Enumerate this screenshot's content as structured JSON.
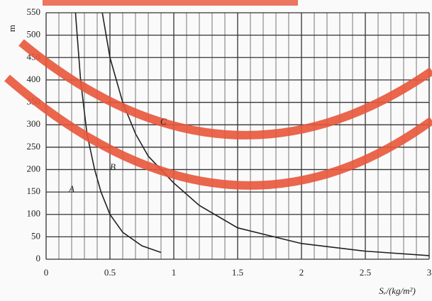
{
  "chart_data": {
    "type": "line",
    "y_label": "m",
    "x_label": "Sᵥ/(kg/m²)",
    "series": [
      {
        "name": "A",
        "color": "#222222",
        "x": [
          0.23,
          0.27,
          0.32,
          0.38,
          0.43,
          0.5,
          0.6,
          0.75,
          0.9
        ],
        "values": [
          550,
          400,
          280,
          200,
          150,
          100,
          60,
          30,
          15
        ]
      },
      {
        "name": "B",
        "color": "#222222",
        "x": [
          0.44,
          0.5,
          0.6,
          0.7,
          0.8,
          1.0,
          1.2,
          1.5,
          2.0,
          2.5,
          3.0
        ],
        "values": [
          550,
          450,
          350,
          280,
          230,
          170,
          120,
          70,
          35,
          18,
          8
        ]
      }
    ],
    "annotations": [
      "A",
      "B",
      "C"
    ],
    "xlim": [
      0,
      3
    ],
    "ylim": [
      0,
      550
    ],
    "xticks": [
      0,
      0.5,
      1,
      1.5,
      2,
      2.5,
      3
    ],
    "yticks": [
      0,
      50,
      100,
      150,
      200,
      250,
      300,
      350,
      400,
      450,
      500,
      550
    ],
    "grid": true
  }
}
